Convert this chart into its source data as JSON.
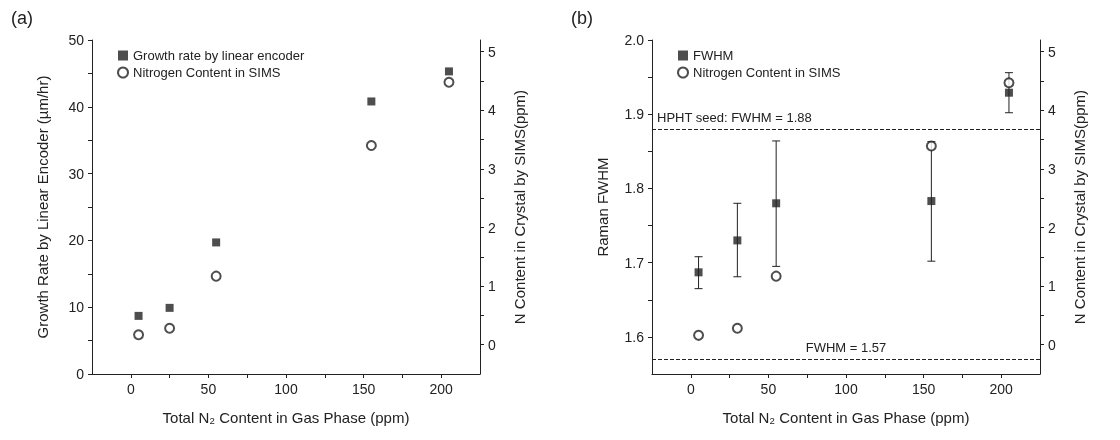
{
  "chart_data": [
    {
      "type": "scatter",
      "title": "(a)",
      "xlabel": "Total N₂ Content in Gas Phase (ppm)",
      "ylabel": "Growth Rate by Linear Encoder (µm/hr)",
      "y2label": "N Content in Crystal by SIMS(ppm)",
      "x": [
        5,
        25,
        55,
        155,
        205
      ],
      "series": [
        {
          "name": "Growth rate by linear encoder",
          "color": "#222222",
          "marker": "square",
          "values": [
            8.7,
            9.9,
            19.7,
            40.8,
            45.3
          ]
        },
        {
          "name": "Nitrogen Content in SIMS",
          "color": "#222222",
          "marker": "circle",
          "axis": "y2",
          "values": [
            0.17,
            0.28,
            1.17,
            3.4,
            4.48
          ]
        }
      ],
      "xlim": [
        -25,
        225
      ],
      "xticks": [
        0,
        {
          "value": 25,
          "label": null
        },
        50,
        {
          "value": 75,
          "label": null
        },
        100,
        {
          "value": 125,
          "label": null
        },
        150,
        {
          "value": 175,
          "label": null
        },
        200
      ],
      "ylim": [
        0,
        50
      ],
      "yticks": [
        0,
        {
          "value": 5,
          "label": null
        },
        10,
        {
          "value": 15,
          "label": null
        },
        20,
        {
          "value": 25,
          "label": null
        },
        30,
        {
          "value": 35,
          "label": null
        },
        40,
        {
          "value": 45,
          "label": null
        },
        50
      ],
      "y2lim": [
        -0.5,
        5.2
      ],
      "y2ticks": [
        0,
        {
          "value": 0.5,
          "label": null
        },
        1,
        {
          "value": 1.5,
          "label": null
        },
        2,
        {
          "value": 2.5,
          "label": null
        },
        3,
        {
          "value": 3.5,
          "label": null
        },
        4,
        {
          "value": 4.5,
          "label": null
        },
        5
      ],
      "grid": false,
      "legend": "top left"
    },
    {
      "type": "scatter",
      "title": "(b)",
      "xlabel": "Total N₂ Content in Gas Phase (ppm)",
      "ylabel": "Raman FWHM",
      "y2label": "N Content in Crystal by SIMS(ppm)",
      "x": [
        5,
        30,
        55,
        155,
        205
      ],
      "series": [
        {
          "name": "FWHM",
          "color": "#222222",
          "marker": "square",
          "values": [
            1.687,
            1.73,
            1.78,
            1.783,
            1.929
          ],
          "errors": [
            [
              1.665,
              1.708
            ],
            [
              1.681,
              1.78
            ],
            [
              1.695,
              1.864
            ],
            [
              1.702,
              1.863
            ],
            [
              1.902,
              1.956
            ]
          ]
        },
        {
          "name": "Nitrogen Content in SIMS",
          "color": "#222222",
          "marker": "circle",
          "axis": "y2",
          "values": [
            0.16,
            0.28,
            1.17,
            3.39,
            4.47
          ]
        }
      ],
      "xlim": [
        -25,
        225
      ],
      "xticks": [
        0,
        {
          "value": 25,
          "label": null
        },
        50,
        {
          "value": 75,
          "label": null
        },
        100,
        {
          "value": 125,
          "label": null
        },
        150,
        {
          "value": 175,
          "label": null
        },
        200
      ],
      "ylim": [
        1.55,
        2.0
      ],
      "yticks": [
        1.6,
        {
          "value": 1.65,
          "label": null
        },
        1.7,
        {
          "value": 1.75,
          "label": null
        },
        1.8,
        {
          "value": 1.85,
          "label": null
        },
        1.9,
        {
          "value": 1.95,
          "label": null
        },
        {
          "value": 2.0,
          "label": "2.0"
        }
      ],
      "y2lim": [
        -0.5,
        5.2
      ],
      "y2ticks": [
        0,
        {
          "value": 0.5,
          "label": null
        },
        1,
        {
          "value": 1.5,
          "label": null
        },
        2,
        {
          "value": 2.5,
          "label": null
        },
        3,
        {
          "value": 3.5,
          "label": null
        },
        4,
        {
          "value": 4.5,
          "label": null
        },
        5
      ],
      "ref_lines": [
        {
          "axis": "y",
          "value": 1.88,
          "label": "HPHT seed: FWHM = 1.88",
          "line_style": "dashed",
          "color": "#222222"
        },
        {
          "axis": "y",
          "value": 1.57,
          "label": "FWHM = 1.57",
          "line_style": "dashed",
          "color": "#222222"
        }
      ],
      "grid": false,
      "legend": "top left"
    }
  ]
}
